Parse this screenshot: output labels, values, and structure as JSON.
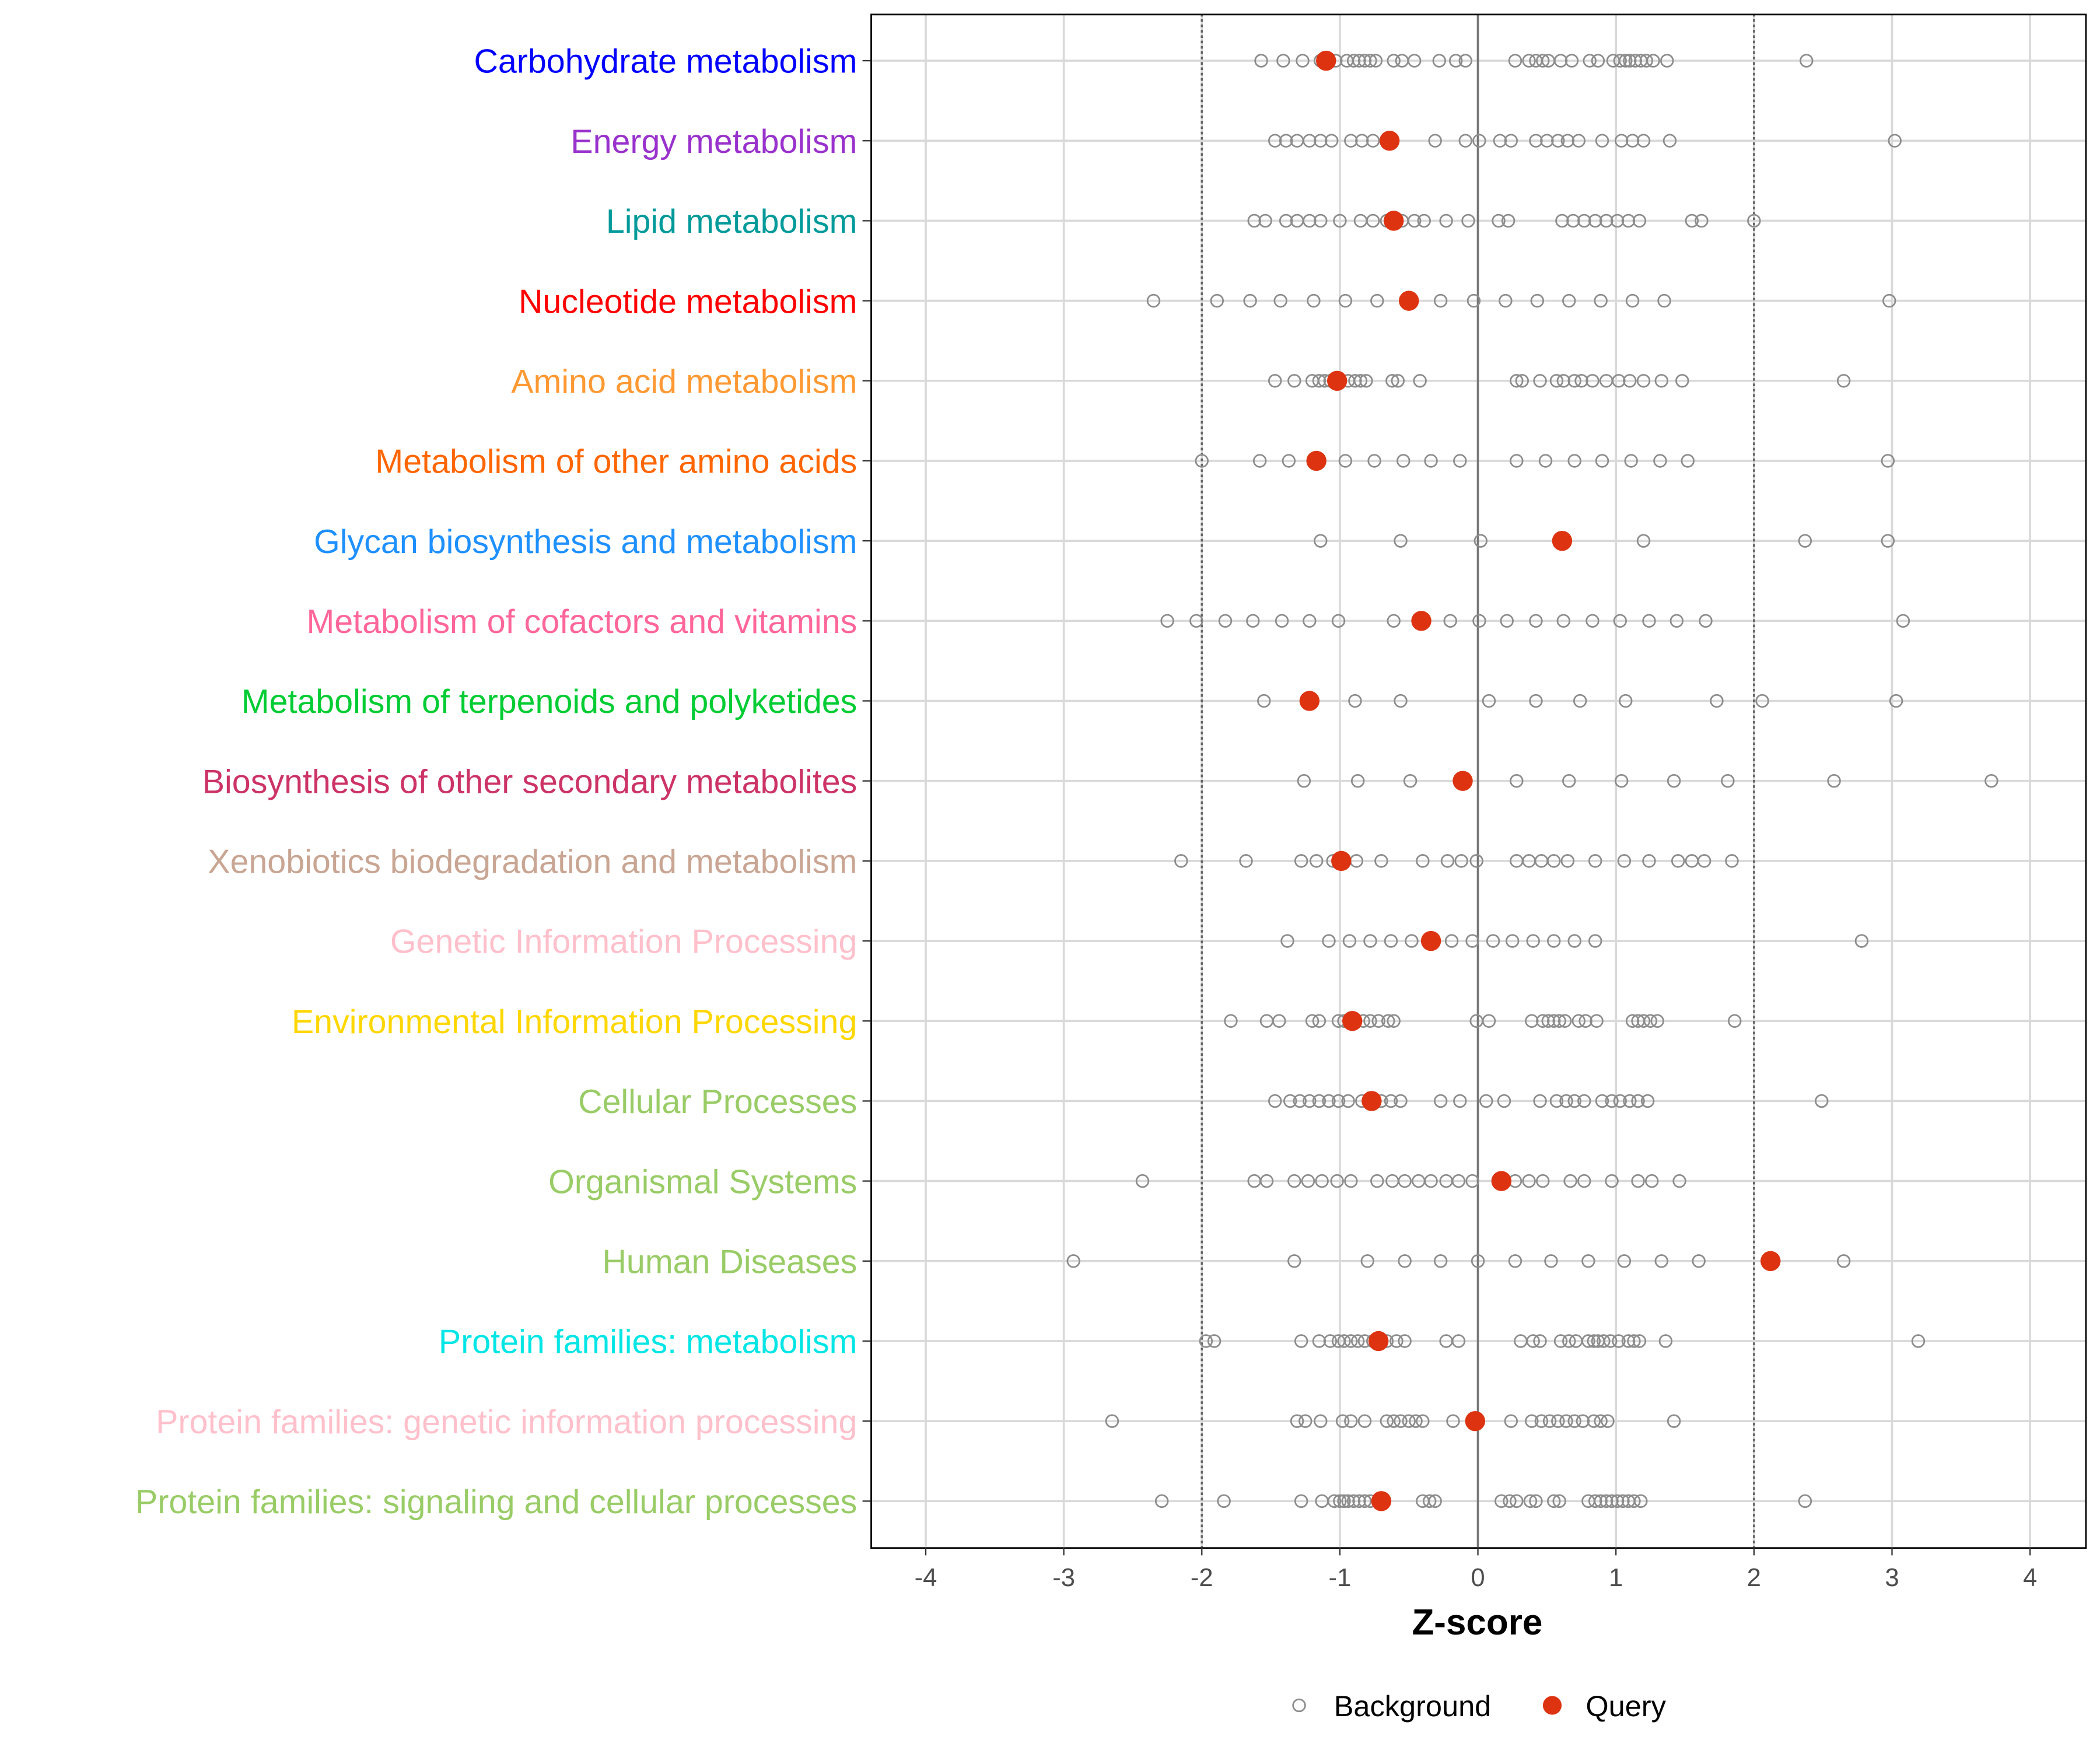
{
  "chart_data": {
    "type": "scatter",
    "xlabel": "Z-score",
    "xlim": [
      -4.4,
      4.4
    ],
    "xticks": [
      "-4",
      "-3",
      "-2",
      "-1",
      "0",
      "1",
      "2",
      "3",
      "4"
    ],
    "xtick_values": [
      -4,
      -3,
      -2,
      -1,
      0,
      1,
      2,
      3,
      4
    ],
    "reference_lines": {
      "dashed": [
        -2,
        2
      ],
      "solid": [
        0
      ]
    },
    "grid": true,
    "legend": {
      "placement": "bottom",
      "entries": [
        "Background",
        "Query"
      ]
    },
    "colors": {
      "background": "#8c8c8c",
      "query": "#dd3311"
    },
    "categories": [
      {
        "label": "Carbohydrate metabolism",
        "color": "#0000ff",
        "query": -1.1,
        "background": [
          -1.57,
          -1.41,
          -1.27,
          -1.14,
          -1.03,
          -0.95,
          -0.9,
          -0.86,
          -0.82,
          -0.78,
          -0.74,
          -0.61,
          -0.55,
          -0.46,
          -0.28,
          -0.16,
          -0.09,
          0.27,
          0.37,
          0.42,
          0.47,
          0.51,
          0.6,
          0.68,
          0.81,
          0.87,
          0.98,
          1.03,
          1.07,
          1.1,
          1.14,
          1.18,
          1.22,
          1.27,
          1.37,
          2.38
        ]
      },
      {
        "label": "Energy metabolism",
        "color": "#9932cc",
        "query": -0.64,
        "background": [
          -1.47,
          -1.39,
          -1.31,
          -1.22,
          -1.14,
          -1.06,
          -0.92,
          -0.84,
          -0.76,
          -0.31,
          -0.09,
          0.01,
          0.16,
          0.24,
          0.42,
          0.5,
          0.58,
          0.65,
          0.73,
          0.9,
          1.04,
          1.12,
          1.2,
          1.39,
          3.02
        ]
      },
      {
        "label": "Lipid metabolism",
        "color": "#009a9a",
        "query": -0.61,
        "background": [
          -1.62,
          -1.54,
          -1.39,
          -1.31,
          -1.22,
          -1.14,
          -1.0,
          -0.85,
          -0.76,
          -0.66,
          -0.55,
          -0.46,
          -0.39,
          -0.23,
          -0.07,
          0.15,
          0.22,
          0.61,
          0.69,
          0.77,
          0.85,
          0.93,
          1.01,
          1.09,
          1.17,
          1.55,
          1.62,
          2.0
        ]
      },
      {
        "label": "Nucleotide metabolism",
        "color": "#ff0000",
        "query": -0.5,
        "background": [
          -2.35,
          -1.89,
          -1.65,
          -1.43,
          -1.19,
          -0.96,
          -0.73,
          -0.27,
          -0.03,
          0.2,
          0.43,
          0.66,
          0.89,
          1.12,
          1.35,
          2.98
        ]
      },
      {
        "label": "Amino acid metabolism",
        "color": "#ff9933",
        "query": -1.02,
        "background": [
          -1.47,
          -1.33,
          -1.2,
          -1.15,
          -1.11,
          -1.07,
          -0.94,
          -0.89,
          -0.85,
          -0.81,
          -0.62,
          -0.58,
          -0.42,
          0.28,
          0.32,
          0.45,
          0.57,
          0.62,
          0.7,
          0.75,
          0.83,
          0.93,
          1.02,
          1.1,
          1.2,
          1.33,
          1.48,
          2.65
        ]
      },
      {
        "label": "Metabolism of other amino acids",
        "color": "#ff6600",
        "query": -1.17,
        "background": [
          -2.0,
          -1.58,
          -1.37,
          -0.96,
          -0.75,
          -0.54,
          -0.34,
          -0.13,
          0.28,
          0.49,
          0.7,
          0.9,
          1.11,
          1.32,
          1.52,
          2.97
        ]
      },
      {
        "label": "Glycan biosynthesis and metabolism",
        "color": "#1e90ff",
        "query": 0.61,
        "background": [
          -1.14,
          -0.56,
          0.02,
          1.2,
          2.37,
          2.97
        ]
      },
      {
        "label": "Metabolism of cofactors and vitamins",
        "color": "#ff6699",
        "query": -0.41,
        "background": [
          -2.25,
          -2.04,
          -1.83,
          -1.63,
          -1.42,
          -1.22,
          -1.01,
          -0.61,
          -0.2,
          0.01,
          0.21,
          0.42,
          0.62,
          0.83,
          1.03,
          1.24,
          1.44,
          1.65,
          3.08
        ]
      },
      {
        "label": "Metabolism of terpenoids and polyketides",
        "color": "#00cc33",
        "query": -1.22,
        "background": [
          -1.55,
          -0.89,
          -0.56,
          0.08,
          0.42,
          0.74,
          1.07,
          1.73,
          2.06,
          3.03
        ]
      },
      {
        "label": "Biosynthesis of other secondary metabolites",
        "color": "#cc3366",
        "query": -0.11,
        "background": [
          -1.26,
          -0.87,
          -0.49,
          0.28,
          0.66,
          1.04,
          1.42,
          1.81,
          2.58,
          3.72
        ]
      },
      {
        "label": "Xenobiotics biodegradation and metabolism",
        "color": "#c9a593",
        "query": -0.99,
        "background": [
          -2.15,
          -1.68,
          -1.28,
          -1.17,
          -1.05,
          -0.88,
          -0.7,
          -0.4,
          -0.22,
          -0.12,
          -0.01,
          0.28,
          0.37,
          0.46,
          0.55,
          0.65,
          0.85,
          1.06,
          1.24,
          1.45,
          1.55,
          1.64,
          1.84
        ]
      },
      {
        "label": "Genetic Information Processing",
        "color": "#ffc0cb",
        "query": -0.34,
        "background": [
          -1.38,
          -1.08,
          -0.93,
          -0.78,
          -0.63,
          -0.48,
          -0.19,
          -0.04,
          0.11,
          0.25,
          0.4,
          0.55,
          0.7,
          0.85,
          2.78
        ]
      },
      {
        "label": "Environmental Information Processing",
        "color": "#ffd700",
        "query": -0.91,
        "background": [
          -1.79,
          -1.53,
          -1.44,
          -1.2,
          -1.15,
          -1.01,
          -0.97,
          -0.83,
          -0.78,
          -0.72,
          -0.65,
          -0.61,
          -0.01,
          0.08,
          0.39,
          0.47,
          0.51,
          0.55,
          0.59,
          0.63,
          0.73,
          0.78,
          0.86,
          1.12,
          1.16,
          1.2,
          1.25,
          1.3,
          1.86
        ]
      },
      {
        "label": "Cellular Processes",
        "color": "#99cc66",
        "query": -0.77,
        "background": [
          -1.47,
          -1.36,
          -1.29,
          -1.22,
          -1.15,
          -1.08,
          -1.01,
          -0.94,
          -0.84,
          -0.7,
          -0.63,
          -0.56,
          -0.27,
          -0.13,
          0.06,
          0.19,
          0.45,
          0.57,
          0.64,
          0.7,
          0.77,
          0.9,
          0.97,
          1.03,
          1.1,
          1.16,
          1.23,
          2.49
        ]
      },
      {
        "label": "Organismal Systems",
        "color": "#99cc66",
        "query": 0.17,
        "background": [
          -2.43,
          -1.62,
          -1.53,
          -1.33,
          -1.23,
          -1.13,
          -1.02,
          -0.92,
          -0.73,
          -0.62,
          -0.53,
          -0.43,
          -0.34,
          -0.23,
          -0.14,
          -0.04,
          0.27,
          0.37,
          0.47,
          0.67,
          0.77,
          0.97,
          1.16,
          1.26,
          1.46
        ]
      },
      {
        "label": "Human Diseases",
        "color": "#99cc66",
        "query": 2.12,
        "background": [
          -2.93,
          -1.33,
          -0.8,
          -0.53,
          -0.27,
          0.0,
          0.27,
          0.53,
          0.8,
          1.06,
          1.33,
          1.6,
          2.65
        ]
      },
      {
        "label": "Protein families: metabolism",
        "color": "#00e5e5",
        "query": -0.72,
        "background": [
          -1.97,
          -1.91,
          -1.28,
          -1.15,
          -1.07,
          -1.01,
          -0.97,
          -0.92,
          -0.87,
          -0.82,
          -0.76,
          -0.66,
          -0.59,
          -0.53,
          -0.23,
          -0.14,
          0.31,
          0.4,
          0.45,
          0.6,
          0.66,
          0.71,
          0.8,
          0.84,
          0.87,
          0.91,
          0.96,
          1.02,
          1.09,
          1.13,
          1.17,
          1.36,
          3.19
        ]
      },
      {
        "label": "Protein families: genetic information processing",
        "color": "#ffc0cb",
        "query": -0.02,
        "background": [
          -2.65,
          -1.31,
          -1.25,
          -1.14,
          -0.98,
          -0.92,
          -0.82,
          -0.66,
          -0.61,
          -0.56,
          -0.5,
          -0.45,
          -0.4,
          -0.18,
          0.24,
          0.39,
          0.46,
          0.52,
          0.58,
          0.64,
          0.7,
          0.76,
          0.84,
          0.89,
          0.94,
          1.42
        ]
      },
      {
        "label": "Protein families: signaling and cellular processes",
        "color": "#99cc66",
        "query": -0.7,
        "background": [
          -2.29,
          -1.84,
          -1.28,
          -1.13,
          -1.04,
          -1.0,
          -0.97,
          -0.94,
          -0.9,
          -0.86,
          -0.82,
          -0.78,
          -0.4,
          -0.35,
          -0.31,
          0.17,
          0.23,
          0.28,
          0.38,
          0.42,
          0.55,
          0.59,
          0.8,
          0.85,
          0.89,
          0.93,
          0.97,
          1.01,
          1.05,
          1.09,
          1.13,
          1.18,
          2.37
        ]
      }
    ]
  }
}
